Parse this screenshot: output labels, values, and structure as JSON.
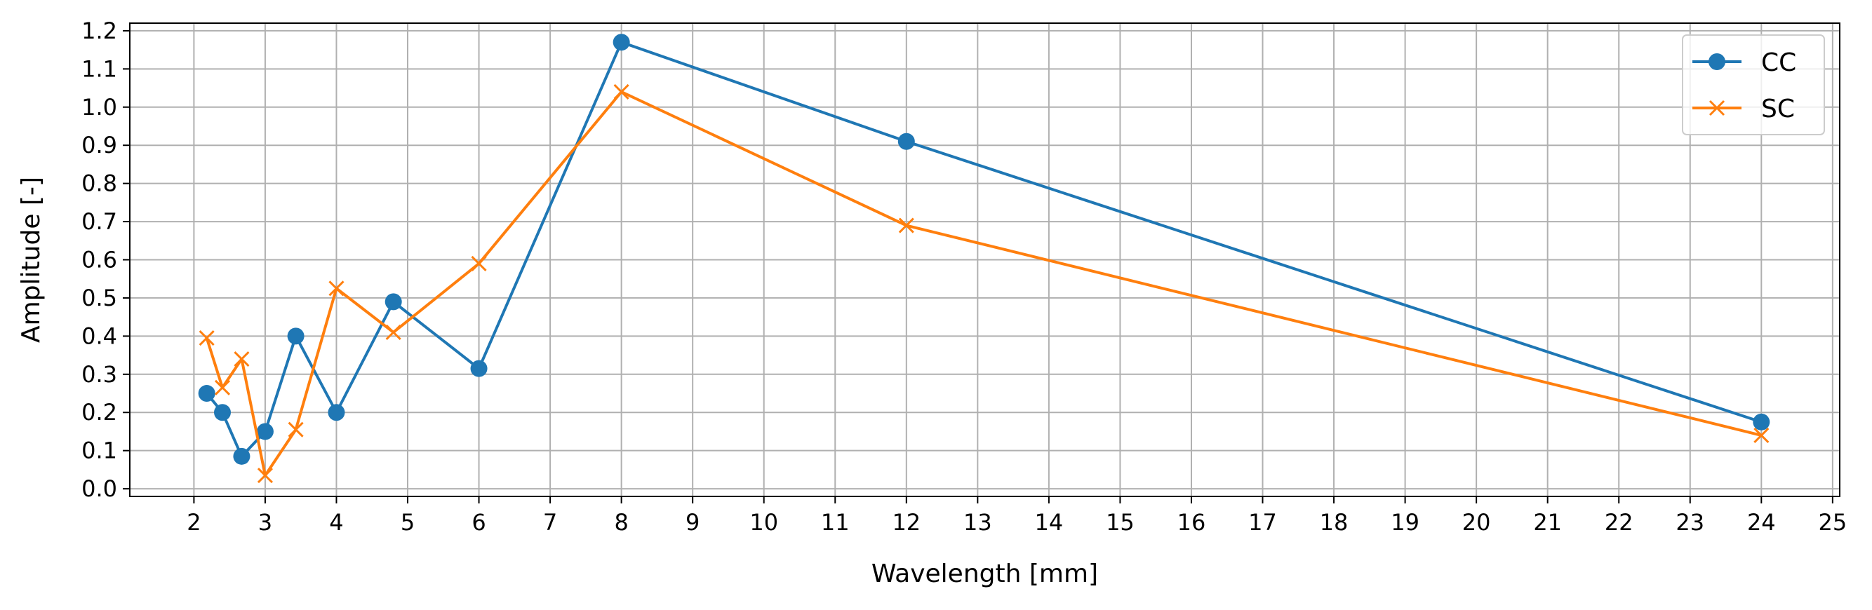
{
  "chart_data": {
    "type": "line",
    "title": "",
    "xlabel": "Wavelength [mm]",
    "ylabel": "Amplitude [-]",
    "xlim": [
      1.1,
      25.1
    ],
    "ylim": [
      -0.02,
      1.22
    ],
    "xticks": [
      2,
      3,
      4,
      5,
      6,
      7,
      8,
      9,
      10,
      11,
      12,
      13,
      14,
      15,
      16,
      17,
      18,
      19,
      20,
      21,
      22,
      23,
      24,
      25
    ],
    "yticks": [
      0.0,
      0.1,
      0.2,
      0.3,
      0.4,
      0.5,
      0.6,
      0.7,
      0.8,
      0.9,
      1.0,
      1.1,
      1.2
    ],
    "grid": true,
    "legend": "upper right",
    "series": [
      {
        "name": "CC",
        "color": "#1f77b4",
        "marker": "circle",
        "x": [
          2.18,
          2.4,
          2.67,
          3.0,
          3.43,
          4.0,
          4.8,
          6.0,
          8.0,
          12.0,
          24.0
        ],
        "y": [
          0.25,
          0.2,
          0.085,
          0.15,
          0.4,
          0.2,
          0.49,
          0.315,
          1.17,
          0.91,
          0.175
        ]
      },
      {
        "name": "SC",
        "color": "#ff7f0e",
        "marker": "x",
        "x": [
          2.18,
          2.4,
          2.67,
          3.0,
          3.43,
          4.0,
          4.8,
          6.0,
          8.0,
          12.0,
          24.0
        ],
        "y": [
          0.395,
          0.265,
          0.34,
          0.035,
          0.155,
          0.525,
          0.41,
          0.59,
          1.04,
          0.69,
          0.14
        ]
      }
    ]
  }
}
